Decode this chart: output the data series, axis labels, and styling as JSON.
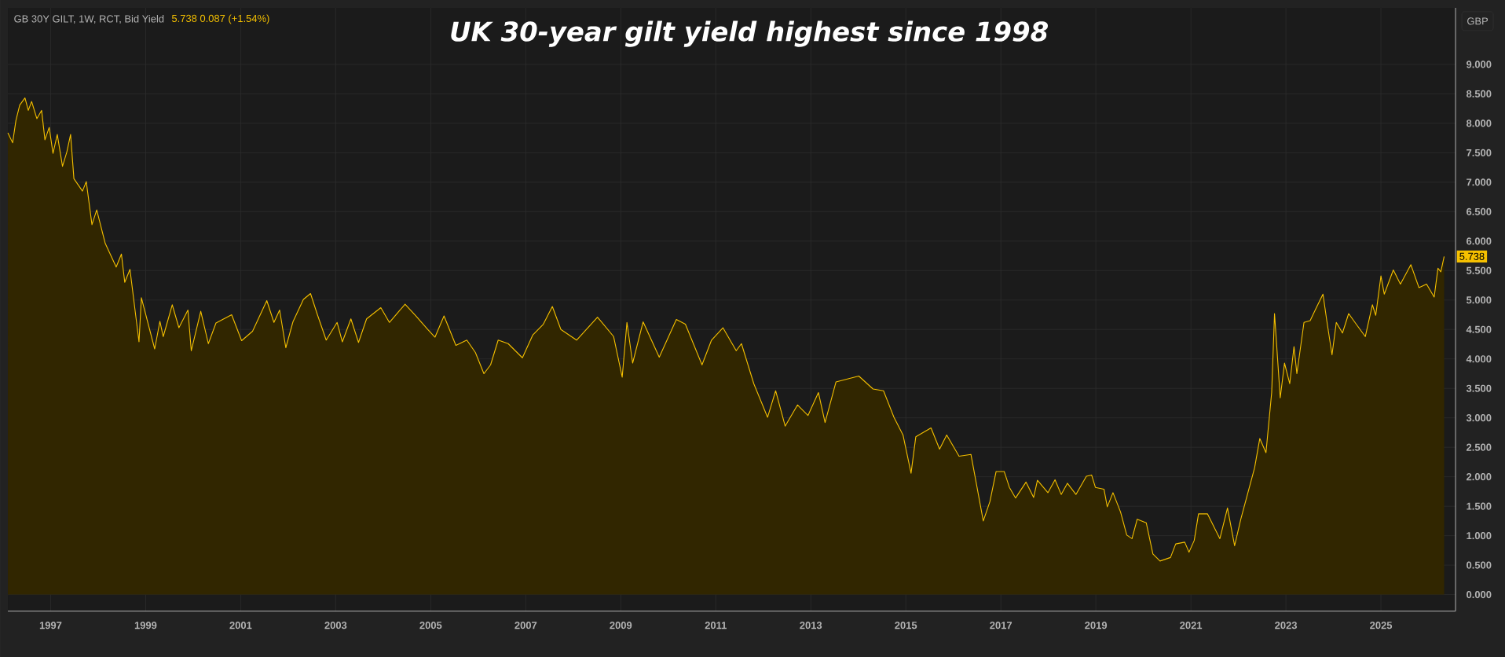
{
  "chart_data": {
    "type": "area",
    "title": "UK 30-year gilt yield highest since 1998",
    "annotations": [
      "GB 30Y GILT, 1W, RCT, Bid Yield",
      "5.738  0.087 (+1.54%)",
      "GBP",
      {
        "text": "5.738",
        "x": 2026.33,
        "y": 5.74
      }
    ],
    "color": "#f5c000",
    "grid": true,
    "xlim": [
      1996.1,
      2026.57
    ],
    "xticks": [
      1997,
      1999,
      2001,
      2003,
      2005,
      2007,
      2009,
      2011,
      2013,
      2015,
      2017,
      2019,
      2021,
      2023,
      2025
    ],
    "ylim": [
      -0.28,
      9.96
    ],
    "yticks": [
      {
        "value": 0,
        "label": "0.000"
      },
      {
        "value": 0.5,
        "label": "0.500"
      },
      {
        "value": 1,
        "label": "1.000"
      },
      {
        "value": 1.5,
        "label": "1.500"
      },
      {
        "value": 2,
        "label": "2.000"
      },
      {
        "value": 2.5,
        "label": "2.500"
      },
      {
        "value": 3,
        "label": "3.000"
      },
      {
        "value": 3.5,
        "label": "3.500"
      },
      {
        "value": 4,
        "label": "4.000"
      },
      {
        "value": 4.5,
        "label": "4.500"
      },
      {
        "value": 5,
        "label": "5.000"
      },
      {
        "value": 5.5,
        "label": "5.500"
      },
      {
        "value": 6,
        "label": "6.000"
      },
      {
        "value": 6.5,
        "label": "6.500"
      },
      {
        "value": 7,
        "label": "7.000"
      },
      {
        "value": 7.5,
        "label": "7.500"
      },
      {
        "value": 8,
        "label": "8.000"
      },
      {
        "value": 8.5,
        "label": "8.500"
      },
      {
        "value": 9,
        "label": "9.000"
      }
    ],
    "x": [
      1996.1,
      1996.2,
      1996.27,
      1996.35,
      1996.46,
      1996.53,
      1996.6,
      1996.71,
      1996.81,
      1996.88,
      1996.97,
      1997.05,
      1997.14,
      1997.25,
      1997.34,
      1997.42,
      1997.49,
      1997.67,
      1997.75,
      1997.87,
      1997.97,
      1998.15,
      1998.38,
      1998.49,
      1998.56,
      1998.67,
      1998.86,
      1998.91,
      1999.19,
      1999.3,
      1999.37,
      1999.56,
      1999.7,
      1999.89,
      1999.96,
      2000.16,
      2000.32,
      2000.48,
      2000.81,
      2001.02,
      2001.25,
      2001.55,
      2001.7,
      2001.82,
      2001.95,
      2002.1,
      2002.32,
      2002.47,
      2002.62,
      2002.8,
      2003.03,
      2003.14,
      2003.32,
      2003.48,
      2003.65,
      2003.95,
      2004.13,
      2004.46,
      2004.69,
      2004.94,
      2005.09,
      2005.28,
      2005.53,
      2005.76,
      2005.94,
      2006.12,
      2006.26,
      2006.42,
      2006.63,
      2006.93,
      2007.15,
      2007.37,
      2007.56,
      2007.74,
      2008.07,
      2008.51,
      2008.85,
      2009.03,
      2009.13,
      2009.25,
      2009.47,
      2009.81,
      2010.17,
      2010.36,
      2010.71,
      2010.91,
      2011.15,
      2011.43,
      2011.54,
      2011.8,
      2012.09,
      2012.26,
      2012.46,
      2012.72,
      2012.94,
      2013.16,
      2013.3,
      2013.53,
      2014.01,
      2014.31,
      2014.53,
      2014.75,
      2014.94,
      2015.11,
      2015.21,
      2015.53,
      2015.71,
      2015.86,
      2016.12,
      2016.37,
      2016.63,
      2016.77,
      2016.9,
      2017.07,
      2017.18,
      2017.31,
      2017.53,
      2017.69,
      2017.77,
      2017.99,
      2018.14,
      2018.27,
      2018.4,
      2018.58,
      2018.8,
      2018.91,
      2018.99,
      2019.17,
      2019.24,
      2019.36,
      2019.52,
      2019.65,
      2019.76,
      2019.87,
      2020.06,
      2020.2,
      2020.35,
      2020.57,
      2020.68,
      2020.87,
      2020.96,
      2021.07,
      2021.16,
      2021.35,
      2021.61,
      2021.77,
      2021.92,
      2022.05,
      2022.16,
      2022.34,
      2022.45,
      2022.58,
      2022.7,
      2022.76,
      2022.88,
      2022.97,
      2023.08,
      2023.17,
      2023.23,
      2023.38,
      2023.51,
      2023.64,
      2023.78,
      2023.86,
      2023.97,
      2024.06,
      2024.19,
      2024.32,
      2024.48,
      2024.67,
      2024.82,
      2024.89,
      2025.0,
      2025.07,
      2025.26,
      2025.41,
      2025.63,
      2025.8,
      2025.96,
      2026.12,
      2026.2,
      2026.26,
      2026.33
    ],
    "values": [
      7.84,
      7.67,
      8.05,
      8.31,
      8.43,
      8.22,
      8.37,
      8.08,
      8.22,
      7.72,
      7.93,
      7.49,
      7.81,
      7.27,
      7.51,
      7.81,
      7.06,
      6.85,
      7.01,
      6.28,
      6.53,
      5.96,
      5.56,
      5.78,
      5.3,
      5.52,
      4.29,
      5.04,
      4.17,
      4.64,
      4.38,
      4.92,
      4.53,
      4.83,
      4.14,
      4.81,
      4.26,
      4.61,
      4.75,
      4.31,
      4.47,
      4.99,
      4.62,
      4.83,
      4.19,
      4.63,
      5.01,
      5.11,
      4.74,
      4.32,
      4.62,
      4.29,
      4.68,
      4.28,
      4.68,
      4.87,
      4.62,
      4.93,
      4.73,
      4.5,
      4.37,
      4.73,
      4.23,
      4.32,
      4.11,
      3.75,
      3.9,
      4.32,
      4.26,
      4.02,
      4.41,
      4.59,
      4.89,
      4.5,
      4.32,
      4.71,
      4.38,
      3.69,
      4.62,
      3.93,
      4.63,
      4.03,
      4.67,
      4.59,
      3.9,
      4.32,
      4.53,
      4.14,
      4.26,
      3.58,
      3.01,
      3.46,
      2.86,
      3.22,
      3.04,
      3.43,
      2.92,
      3.61,
      3.71,
      3.49,
      3.46,
      3.01,
      2.71,
      2.06,
      2.68,
      2.83,
      2.47,
      2.71,
      2.35,
      2.38,
      1.25,
      1.58,
      2.09,
      2.09,
      1.82,
      1.64,
      1.91,
      1.65,
      1.94,
      1.73,
      1.95,
      1.7,
      1.89,
      1.7,
      2.01,
      2.03,
      1.82,
      1.79,
      1.49,
      1.73,
      1.4,
      1.01,
      0.95,
      1.28,
      1.22,
      0.69,
      0.57,
      0.63,
      0.86,
      0.89,
      0.72,
      0.92,
      1.37,
      1.37,
      0.95,
      1.47,
      0.83,
      1.28,
      1.61,
      2.15,
      2.65,
      2.41,
      3.43,
      4.77,
      3.34,
      3.93,
      3.58,
      4.21,
      3.75,
      4.62,
      4.65,
      4.87,
      5.1,
      4.65,
      4.07,
      4.62,
      4.44,
      4.77,
      4.59,
      4.38,
      4.92,
      4.74,
      5.41,
      5.1,
      5.51,
      5.27,
      5.6,
      5.21,
      5.27,
      5.05,
      5.54,
      5.48,
      5.74
    ]
  }
}
